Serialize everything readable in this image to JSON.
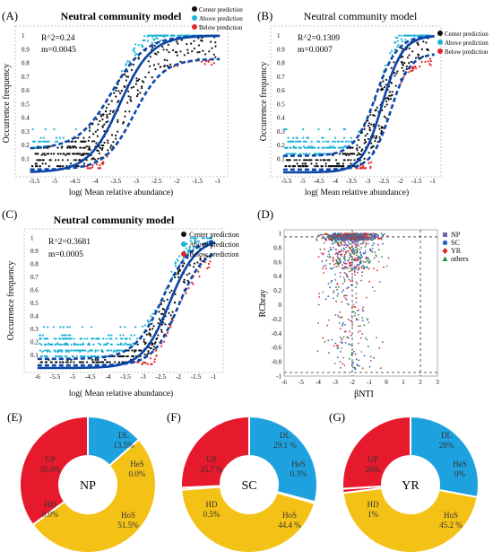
{
  "colors": {
    "fit_line": "#0b45a8",
    "center": "#111111",
    "above": "#1fb3d6",
    "below": "#e0262b",
    "pie_dl": "#1ea2df",
    "pie_hos": "#f4c217",
    "pie_ld": "#e4192e",
    "pie_up": "#e61a2c",
    "np": "#7b5fb0",
    "sc": "#2e62b6",
    "yr": "#e0262b",
    "others": "#2a8a45"
  },
  "chart_data": [
    {
      "panel": "(A)",
      "type": "scatter",
      "title": "Neutral community model",
      "xlabel": "log( Mean relative abundance)",
      "ylabel": "Occurrence frequency",
      "xlim": [
        -5.9,
        -0.8
      ],
      "ylim": [
        0,
        1.05
      ],
      "xticks": [
        "-5.5",
        "-5",
        "-4.5",
        "-4",
        "-3.5",
        "-3",
        "-2.5",
        "-2",
        "-1.5",
        "-1"
      ],
      "yticks": [
        "0.1",
        "0.2",
        "0.3",
        "0.4",
        "0.5",
        "0.6",
        "0.7",
        "0.8",
        "0.9",
        "1"
      ],
      "annotations": [
        "R^2=0.24",
        "m=0.0045"
      ],
      "legend": [
        "Center prediction",
        "Above prediction",
        "Below prediction"
      ],
      "fit": {
        "mid": -3.4,
        "k": 2.6
      },
      "ci_upper": {
        "mid": -3.6,
        "k": 2.4,
        "base": 0.17,
        "top": 1.0
      },
      "ci_lower": {
        "mid": -3.05,
        "k": 2.8,
        "base": 0.02,
        "top": 0.83
      }
    },
    {
      "panel": "(B)",
      "type": "scatter",
      "title": "Neutral community model",
      "xlabel": "log( Mean relative abundance)",
      "ylabel": "Occurrence frequency",
      "xlim": [
        -5.9,
        -0.8
      ],
      "ylim": [
        0,
        1.05
      ],
      "xticks": [
        "-5.5",
        "-5",
        "-4.5",
        "-4",
        "-3.5",
        "-3",
        "-2.5",
        "-2",
        "-1.5",
        "-1"
      ],
      "yticks": [
        "0.1",
        "0.2",
        "0.3",
        "0.4",
        "0.5",
        "0.6",
        "0.7",
        "0.8",
        "0.9",
        "1"
      ],
      "annotations": [
        "R^2=0.1309",
        "m=0.0007"
      ],
      "legend": [
        "Center prediction",
        "Above prediction",
        "Below prediction"
      ],
      "fit": {
        "mid": -2.55,
        "k": 3.2
      },
      "ci_upper": {
        "mid": -2.75,
        "k": 3.0,
        "base": 0.12,
        "top": 1.0
      },
      "ci_lower": {
        "mid": -2.3,
        "k": 3.4,
        "base": 0.02,
        "top": 0.87
      }
    },
    {
      "panel": "(C)",
      "type": "scatter",
      "title": "Neutral community model",
      "xlabel": "log( Mean relative abundance)",
      "ylabel": "Occurrence frequency",
      "xlim": [
        -6.3,
        -0.8
      ],
      "ylim": [
        0,
        1.05
      ],
      "xticks": [
        "-6",
        "-5.5",
        "-5",
        "-4.5",
        "-4",
        "-3.5",
        "-3",
        "-2.5",
        "-2",
        "-1.5",
        "-1"
      ],
      "yticks": [
        "0.1",
        "0.2",
        "0.3",
        "0.4",
        "0.5",
        "0.6",
        "0.7",
        "0.8",
        "0.9",
        "1"
      ],
      "annotations": [
        "R^2=0.3681",
        "m=0.0005"
      ],
      "legend": [
        "Center prediction",
        "Above prediction",
        "Below prediction"
      ],
      "fit": {
        "mid": -2.25,
        "k": 2.6
      },
      "ci_upper": {
        "mid": -2.45,
        "k": 2.5,
        "base": 0.07,
        "top": 1.0
      },
      "ci_lower": {
        "mid": -2.0,
        "k": 2.8,
        "base": 0.02,
        "top": 0.93
      }
    },
    {
      "panel": "(D)",
      "type": "scatter",
      "xlabel": "βNTI",
      "ylabel": "RCbray",
      "xlim": [
        -6,
        3
      ],
      "ylim": [
        -1,
        1.05
      ],
      "xticks": [
        "-6",
        "-5",
        "-4",
        "-3",
        "-2",
        "-1",
        "0",
        "1",
        "2",
        "3"
      ],
      "yticks": [
        "-1",
        "-0.8",
        "-0.6",
        "-0.4",
        "-0.2",
        "0",
        "0.2",
        "0.4",
        "0.6",
        "0.8",
        "1"
      ],
      "ref_lines_x": [
        -2,
        2
      ],
      "ref_lines_y": [
        -0.95,
        0.95
      ],
      "legend": [
        "NP",
        "SC",
        "YR",
        "others"
      ]
    },
    {
      "panel": "(E)",
      "type": "pie",
      "center_label": "NP",
      "slices": [
        {
          "name": "DL",
          "value": 13.5,
          "label": "13.5%"
        },
        {
          "name": "HeS",
          "value": 0.0,
          "label": "0.0%"
        },
        {
          "name": "HoS",
          "value": 51.5,
          "label": "51.5%"
        },
        {
          "name": "HD",
          "value": 0.0,
          "label": "0.0%"
        },
        {
          "name": "UP",
          "value": 35.0,
          "label": "35.0%"
        }
      ]
    },
    {
      "panel": "(F)",
      "type": "pie",
      "center_label": "SC",
      "slices": [
        {
          "name": "DL",
          "value": 29.1,
          "label": "29.1 %"
        },
        {
          "name": "HeS",
          "value": 0.3,
          "label": "0.3%"
        },
        {
          "name": "HoS",
          "value": 44.4,
          "label": "44.4 %"
        },
        {
          "name": "HD",
          "value": 0.5,
          "label": "0.5%"
        },
        {
          "name": "UP",
          "value": 25.7,
          "label": "25.7 %"
        }
      ]
    },
    {
      "panel": "(G)",
      "type": "pie",
      "center_label": "YR",
      "slices": [
        {
          "name": "DL",
          "value": 28,
          "label": "28%"
        },
        {
          "name": "HeS",
          "value": 0,
          "label": "0%"
        },
        {
          "name": "HoS",
          "value": 45.2,
          "label": "45.2 %"
        },
        {
          "name": "HD",
          "value": 1,
          "label": "1%"
        },
        {
          "name": "UP",
          "value": 26,
          "label": "26%"
        }
      ]
    }
  ]
}
